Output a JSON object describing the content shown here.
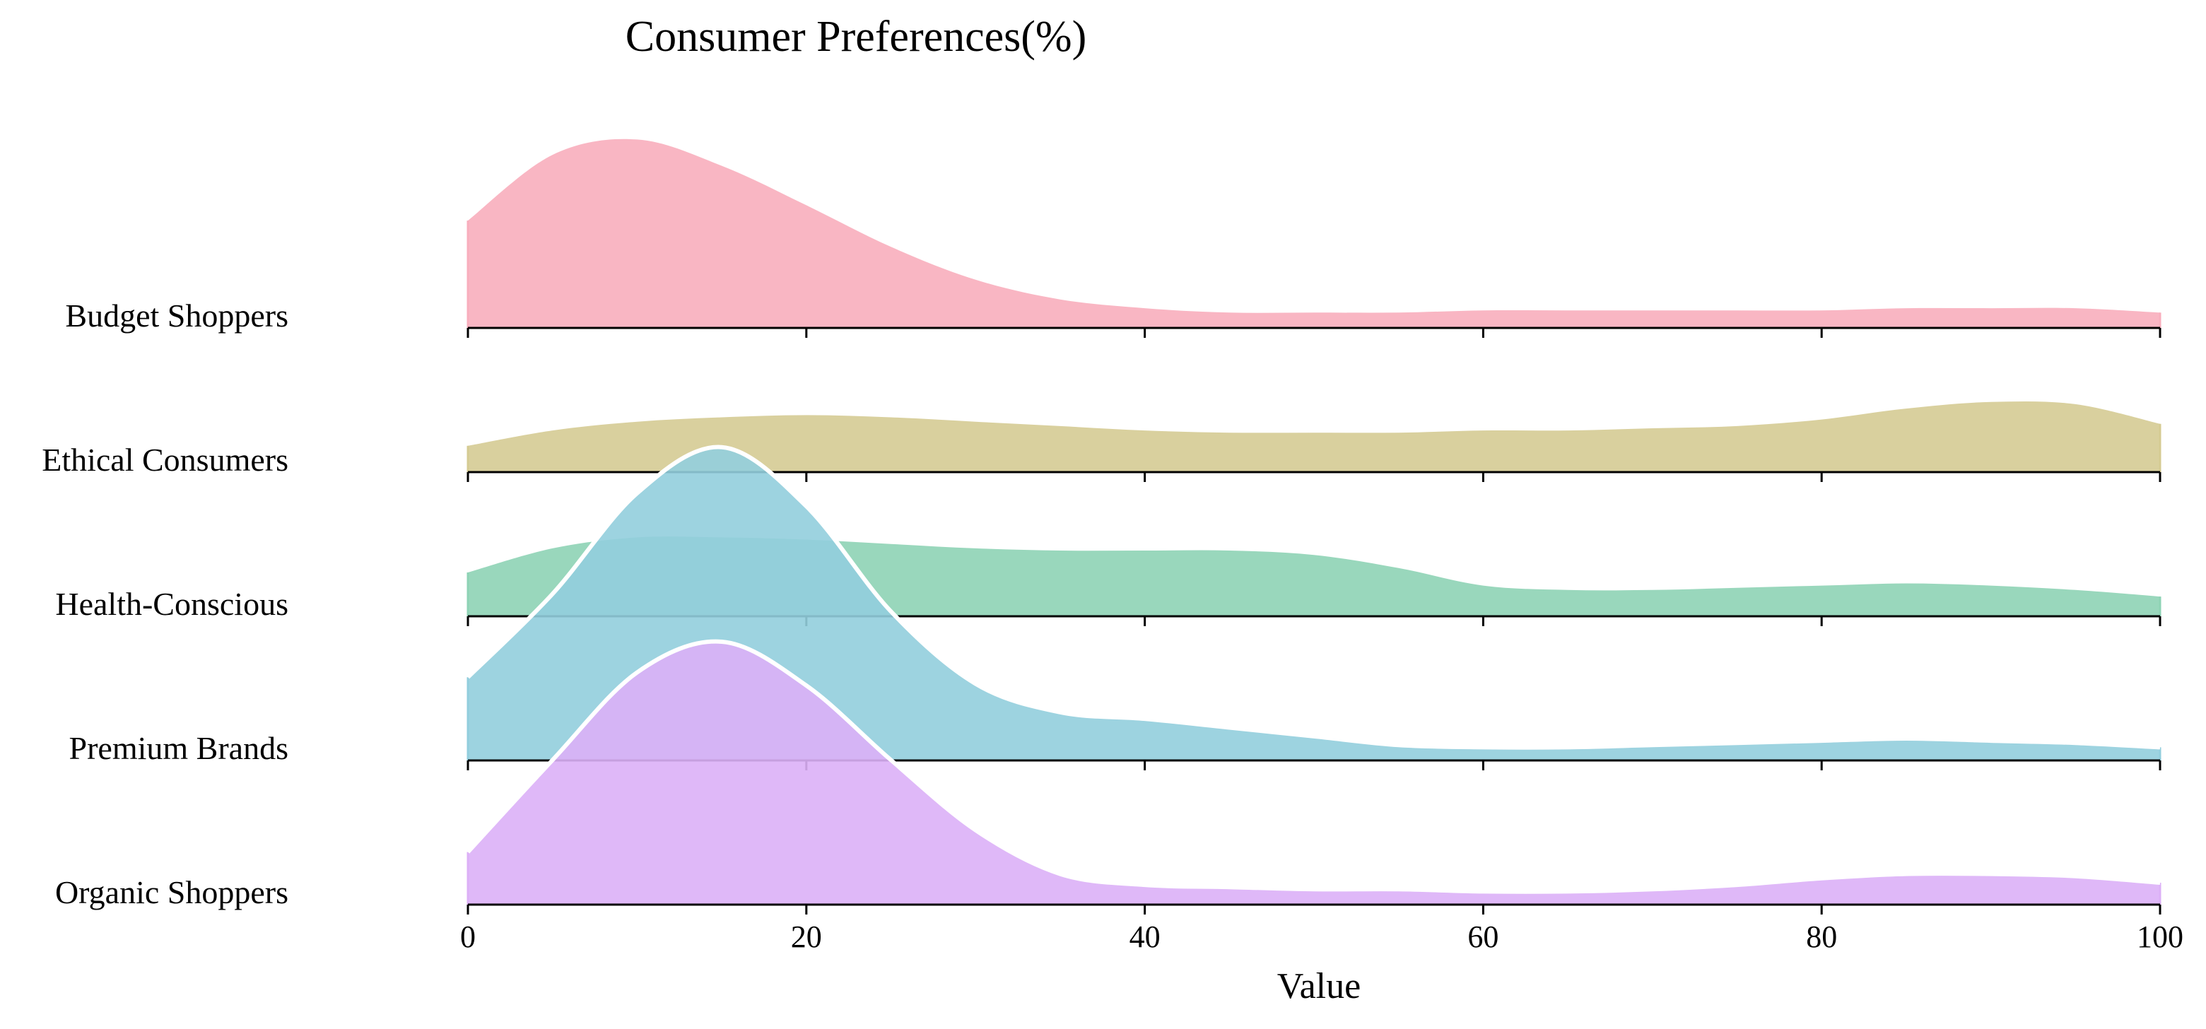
{
  "chart_data": {
    "type": "ridgeline",
    "title": "Consumer Preferences(%)",
    "xlabel": "Value",
    "ylabel": "",
    "xlim": [
      0,
      100
    ],
    "xticks": [
      0,
      20,
      40,
      60,
      80,
      100
    ],
    "grid": false,
    "legend": "none",
    "x": [
      0,
      5,
      10,
      15,
      20,
      25,
      30,
      35,
      40,
      45,
      50,
      55,
      60,
      65,
      70,
      75,
      80,
      85,
      90,
      95,
      100
    ],
    "series": [
      {
        "name": "Budget Shoppers",
        "color": "#f8aebd",
        "values": [
          0.49,
          0.79,
          0.86,
          0.74,
          0.56,
          0.37,
          0.22,
          0.13,
          0.09,
          0.07,
          0.07,
          0.07,
          0.08,
          0.08,
          0.08,
          0.08,
          0.08,
          0.09,
          0.09,
          0.09,
          0.07
        ]
      },
      {
        "name": "Ethical Consumers",
        "color": "#d5cb93",
        "values": [
          0.12,
          0.19,
          0.23,
          0.25,
          0.26,
          0.25,
          0.23,
          0.21,
          0.19,
          0.18,
          0.18,
          0.18,
          0.19,
          0.19,
          0.2,
          0.21,
          0.24,
          0.29,
          0.32,
          0.31,
          0.22
        ]
      },
      {
        "name": "Health-Conscious",
        "color": "#8ed3b5",
        "values": [
          0.2,
          0.31,
          0.36,
          0.36,
          0.35,
          0.33,
          0.31,
          0.3,
          0.3,
          0.3,
          0.28,
          0.22,
          0.14,
          0.12,
          0.12,
          0.13,
          0.14,
          0.15,
          0.14,
          0.12,
          0.09
        ]
      },
      {
        "name": "Premium Brands",
        "color": "#92cedd",
        "values": [
          0.38,
          0.76,
          1.22,
          1.43,
          1.16,
          0.68,
          0.35,
          0.22,
          0.19,
          0.15,
          0.11,
          0.07,
          0.06,
          0.06,
          0.07,
          0.08,
          0.09,
          0.1,
          0.09,
          0.08,
          0.06
        ]
      },
      {
        "name": "Organic Shoppers",
        "color": "#dcb0f7",
        "values": [
          0.24,
          0.66,
          1.06,
          1.2,
          1.0,
          0.66,
          0.34,
          0.14,
          0.09,
          0.08,
          0.07,
          0.07,
          0.06,
          0.06,
          0.07,
          0.09,
          0.12,
          0.14,
          0.14,
          0.13,
          0.1
        ]
      }
    ]
  }
}
